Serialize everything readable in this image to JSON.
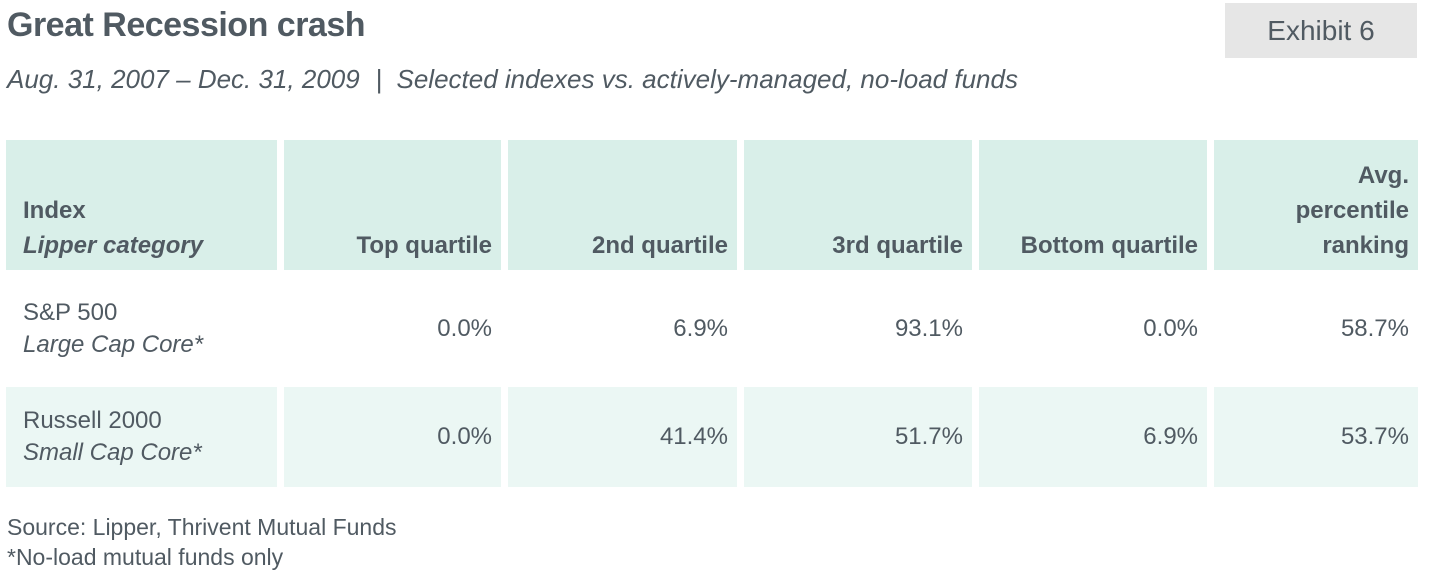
{
  "header": {
    "title": "Great Recession crash",
    "badge": "Exhibit 6",
    "subtitle_dates": "Aug. 31, 2007 – Dec. 31, 2009",
    "subtitle_separator": "|",
    "subtitle_desc": "Selected indexes vs. actively-managed, no-load funds"
  },
  "table": {
    "columns": {
      "index_line1": "Index",
      "index_line2": "Lipper category",
      "top": "Top quartile",
      "second": "2nd quartile",
      "third": "3rd quartile",
      "bottom": "Bottom quartile",
      "avg_line1": "Avg.",
      "avg_line2": "percentile",
      "avg_line3": "ranking"
    },
    "rows": [
      {
        "index": "S&P 500",
        "category": "Large Cap Core*",
        "top": "0.0%",
        "second": "6.9%",
        "third": "93.1%",
        "bottom": "0.0%",
        "avg": "58.7%"
      },
      {
        "index": "Russell 2000",
        "category": "Small Cap Core*",
        "top": "0.0%",
        "second": "41.4%",
        "third": "51.7%",
        "bottom": "6.9%",
        "avg": "53.7%"
      }
    ]
  },
  "footer": {
    "source": "Source: Lipper, Thrivent Mutual Funds",
    "note": "*No-load mutual funds only"
  },
  "colors": {
    "text": "#505a62",
    "header_fill": "#d9efe9",
    "alt_row_fill": "#ebf7f4",
    "badge_fill": "#e6e6e6"
  }
}
